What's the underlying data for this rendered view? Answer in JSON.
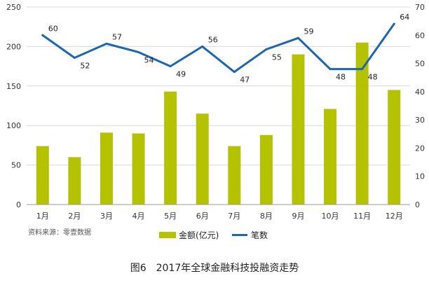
{
  "caption": "图6　2017年全球金融科技投融资走势",
  "source_note": "资料来源：零壹数据",
  "colors": {
    "bar": "#b5c200",
    "line": "#1f66b0",
    "grid": "#d9d9d9",
    "axis": "#999999"
  },
  "chart_data": {
    "type": "bar",
    "categories": [
      "1月",
      "2月",
      "3月",
      "4月",
      "5月",
      "6月",
      "7月",
      "8月",
      "9月",
      "10月",
      "11月",
      "12月"
    ],
    "series": [
      {
        "name": "金额(亿元)",
        "type": "bar",
        "axis": "left",
        "values": [
          74,
          60,
          91,
          90,
          143,
          115,
          74,
          88,
          190,
          121,
          205,
          145
        ]
      },
      {
        "name": "笔数",
        "type": "line",
        "axis": "right",
        "values": [
          60,
          52,
          57,
          54,
          49,
          56,
          47,
          55,
          59,
          48,
          48,
          64
        ]
      }
    ],
    "ylim_left": [
      0,
      250
    ],
    "yticks_left": [
      "0",
      "50",
      "100",
      "150",
      "200",
      "250"
    ],
    "ylim_right": [
      0,
      70
    ],
    "yticks_right": [
      "0",
      "10",
      "20",
      "30",
      "40",
      "50",
      "60",
      "70"
    ],
    "line_labels": [
      "60",
      "52",
      "57",
      "54",
      "49",
      "56",
      "47",
      "55",
      "59",
      "48",
      "48",
      "64"
    ],
    "grid": true,
    "legend": "bottom"
  }
}
